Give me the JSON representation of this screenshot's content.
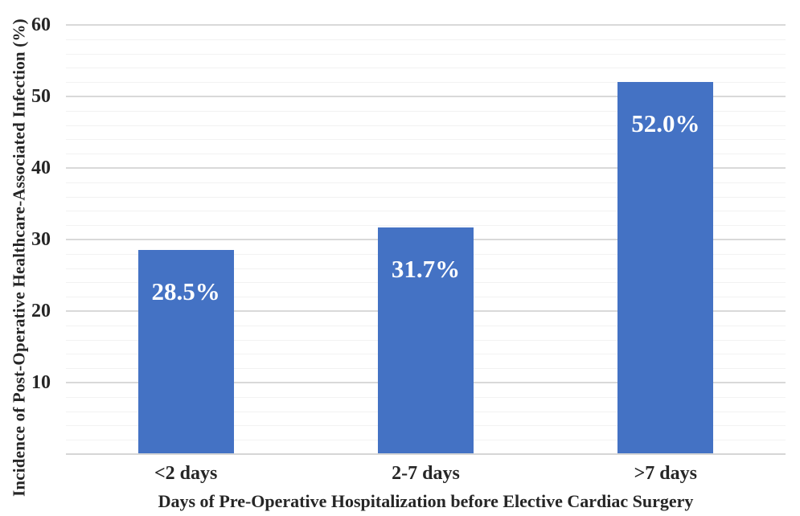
{
  "chart_data": {
    "type": "bar",
    "title": "",
    "categories": [
      "<2 days",
      "2-7 days",
      ">7 days"
    ],
    "values": [
      28.5,
      31.7,
      52.0
    ],
    "bar_labels": [
      "28.5%",
      "31.7%",
      "52.0%"
    ],
    "xlabel": "Days of Pre-Operative Hospitalization before Elective Cardiac Surgery",
    "ylabel": "Incidence of Post-Operative Healthcare-Associated Infection (%)",
    "ylim": [
      0,
      60
    ],
    "y_major_step": 10,
    "y_minor_step": 2,
    "y_tick_labels": [
      "10",
      "20",
      "30",
      "40",
      "50",
      "60"
    ],
    "grid": "horizontal, major and minor lines, no vertical axis line",
    "legend": "none",
    "colors": {
      "bar": "#4472C4",
      "bar_label_text": "#FFFFFF",
      "axis_text": "#262626",
      "major_gridline": "#D9D9D9",
      "minor_gridline": "#F2F2F2",
      "baseline": "#D6D6D6",
      "background": "#FFFFFF"
    }
  }
}
